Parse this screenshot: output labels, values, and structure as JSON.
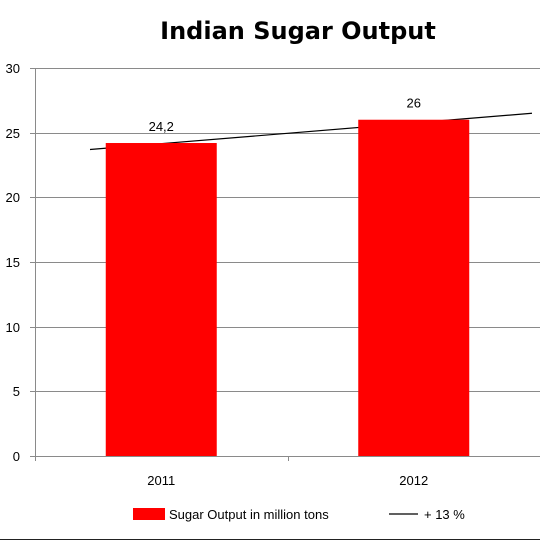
{
  "chart_data": {
    "type": "bar",
    "title": "Indian Sugar Output",
    "categories": [
      "2011",
      "2012"
    ],
    "series": [
      {
        "name": "Sugar Output in million tons",
        "values": [
          24.2,
          26
        ],
        "color": "#ff0000"
      }
    ],
    "data_labels": [
      "24,2",
      "26"
    ],
    "trendline": {
      "name": "+ 13 %",
      "start": 23.7,
      "end": 26.5,
      "color": "#000000"
    },
    "ylim": [
      0,
      30
    ],
    "yticks": [
      "0",
      "5",
      "10",
      "15",
      "20",
      "25",
      "30"
    ],
    "grid": true,
    "legend_position": "bottom"
  }
}
